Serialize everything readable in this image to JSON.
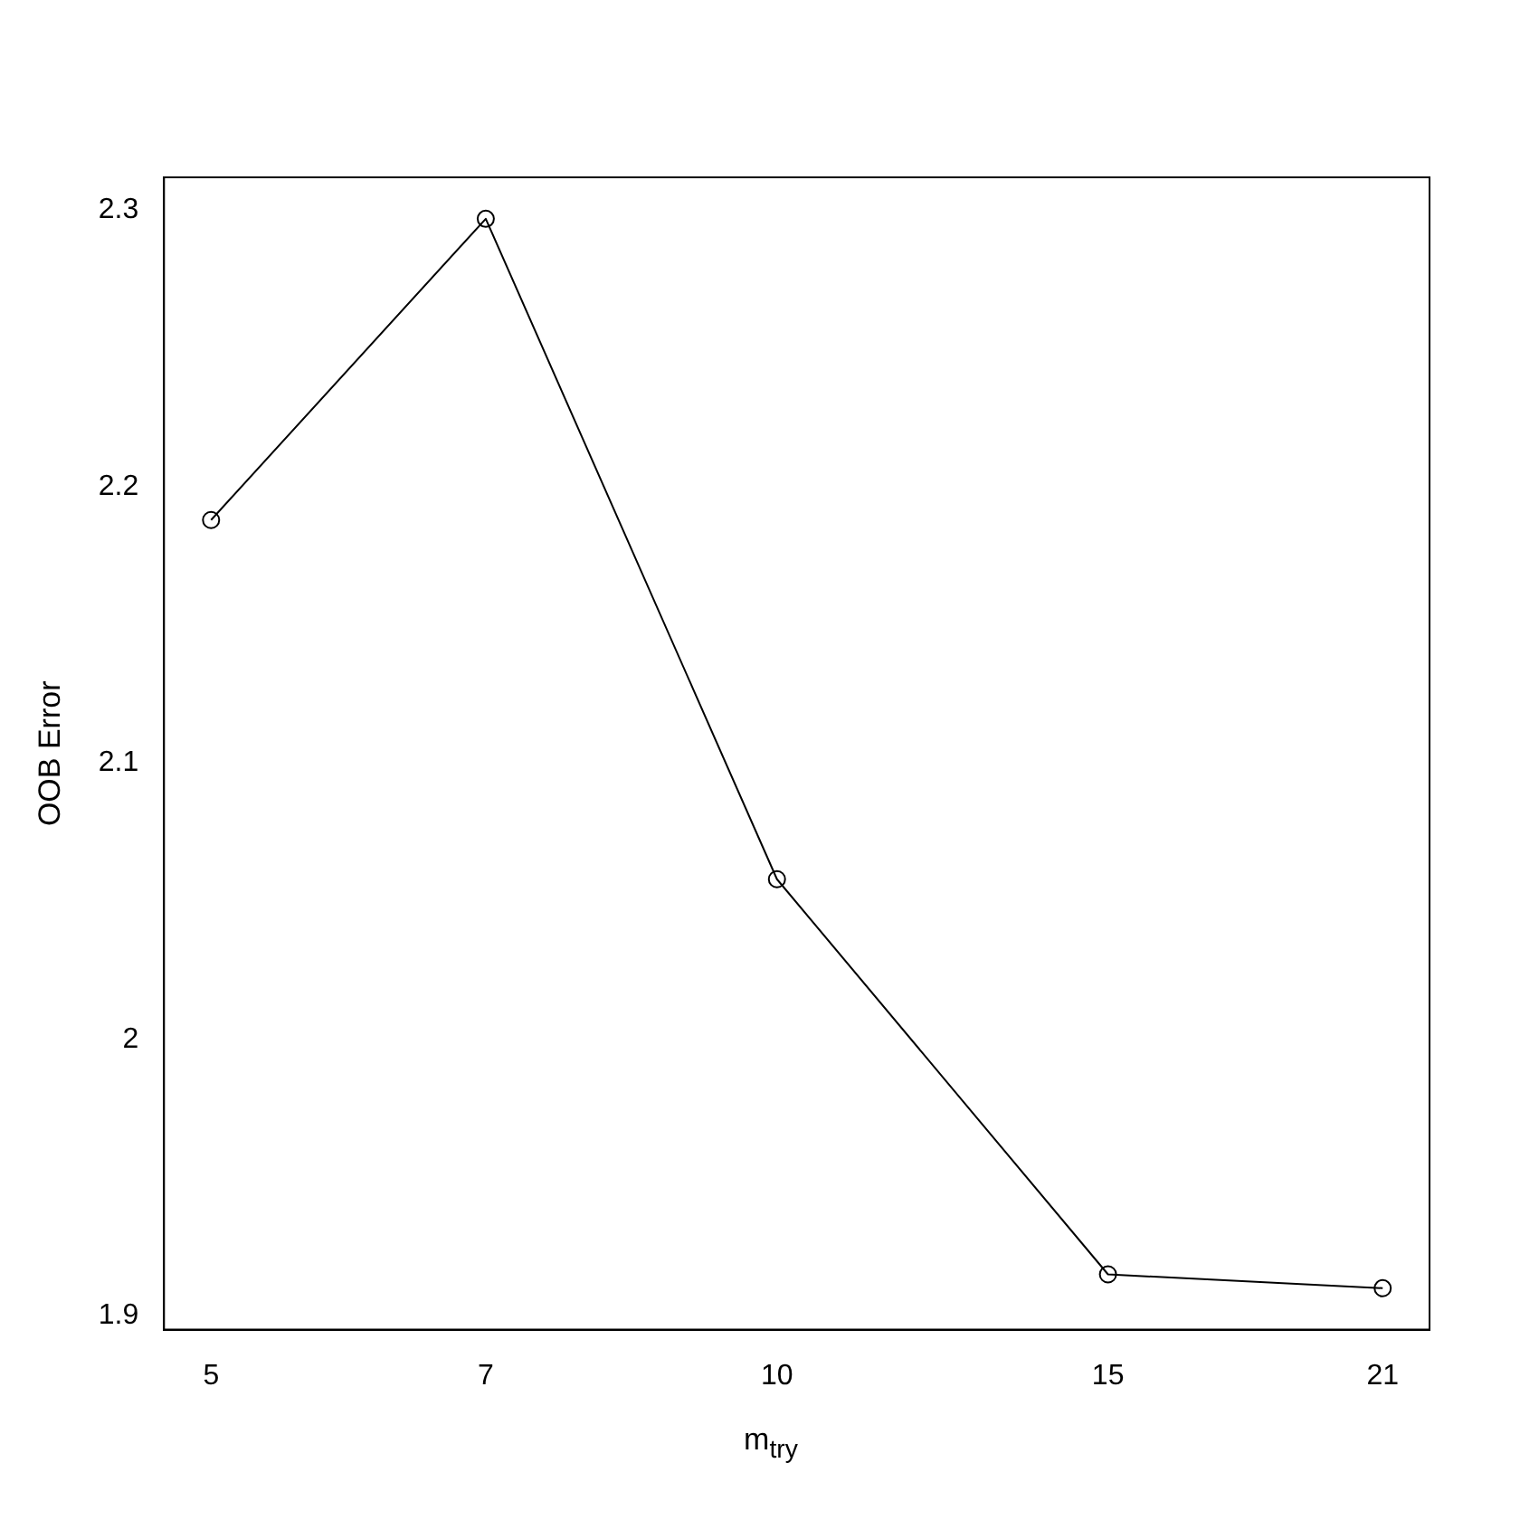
{
  "chart_data": {
    "type": "line",
    "xlabel": "m$_{try}$",
    "ylabel": "OOB Error",
    "x": [
      5,
      7,
      10,
      15,
      21
    ],
    "series": [
      {
        "color": "#000000",
        "values": [
          2.188,
          2.297,
          2.058,
          1.915,
          1.91
        ]
      }
    ],
    "log": "x",
    "xlim": [
      4.72,
      22.24
    ],
    "xticks": [
      5,
      7,
      10,
      15,
      21
    ],
    "ylim": [
      1.895,
      2.312
    ],
    "yticks": [
      1.9,
      2.0,
      2.1,
      2.2,
      2.3
    ],
    "grid": false,
    "legend": false,
    "marker": "circle",
    "line_style": "solid"
  }
}
